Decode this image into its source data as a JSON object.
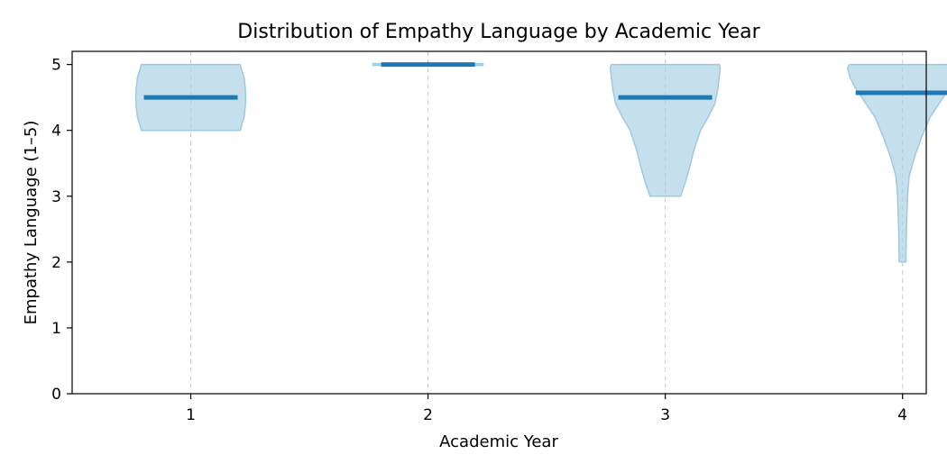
{
  "chart_data": {
    "type": "violin",
    "title": "Distribution of Empathy Language by Academic Year",
    "xlabel": "Academic Year",
    "ylabel": "Empathy Language (1–5)",
    "categories": [
      "1",
      "2",
      "3",
      "4"
    ],
    "ylim": [
      0,
      5.2
    ],
    "yticks": [
      "0",
      "1",
      "2",
      "3",
      "4",
      "5"
    ],
    "grid": "vertical dashed at categories",
    "colors": {
      "fill": "#a6cee3",
      "fill_opacity": 0.65,
      "edge": "#9ecae1",
      "mean": "#1f77b4",
      "grid": "#cccccc"
    },
    "series": [
      {
        "category": "1",
        "mean": 4.5,
        "min": 4.0,
        "max": 5.0,
        "profile": [
          [
            4.0,
            0.9
          ],
          [
            4.1,
            0.93
          ],
          [
            4.2,
            0.97
          ],
          [
            4.35,
            0.99
          ],
          [
            4.5,
            1.0
          ],
          [
            4.65,
            0.99
          ],
          [
            4.8,
            0.97
          ],
          [
            4.9,
            0.93
          ],
          [
            5.0,
            0.9
          ]
        ]
      },
      {
        "category": "2",
        "mean": 5.0,
        "min": 5.0,
        "max": 5.0,
        "profile": [
          [
            4.997,
            1.0
          ],
          [
            5.003,
            1.0
          ]
        ]
      },
      {
        "category": "3",
        "mean": 4.5,
        "min": 3.0,
        "max": 5.0,
        "profile": [
          [
            3.0,
            0.28
          ],
          [
            3.2,
            0.36
          ],
          [
            3.4,
            0.43
          ],
          [
            3.7,
            0.52
          ],
          [
            4.0,
            0.64
          ],
          [
            4.2,
            0.78
          ],
          [
            4.4,
            0.9
          ],
          [
            4.6,
            0.95
          ],
          [
            4.8,
            0.98
          ],
          [
            4.95,
            1.0
          ],
          [
            5.0,
            0.98
          ]
        ]
      },
      {
        "category": "4",
        "mean": 4.57,
        "min": 2.0,
        "max": 5.0,
        "profile": [
          [
            2.0,
            0.06
          ],
          [
            2.5,
            0.07
          ],
          [
            3.0,
            0.09
          ],
          [
            3.3,
            0.12
          ],
          [
            3.6,
            0.22
          ],
          [
            3.9,
            0.35
          ],
          [
            4.2,
            0.5
          ],
          [
            4.45,
            0.7
          ],
          [
            4.65,
            0.86
          ],
          [
            4.8,
            0.95
          ],
          [
            4.95,
            1.0
          ],
          [
            5.0,
            0.96
          ]
        ]
      }
    ]
  }
}
